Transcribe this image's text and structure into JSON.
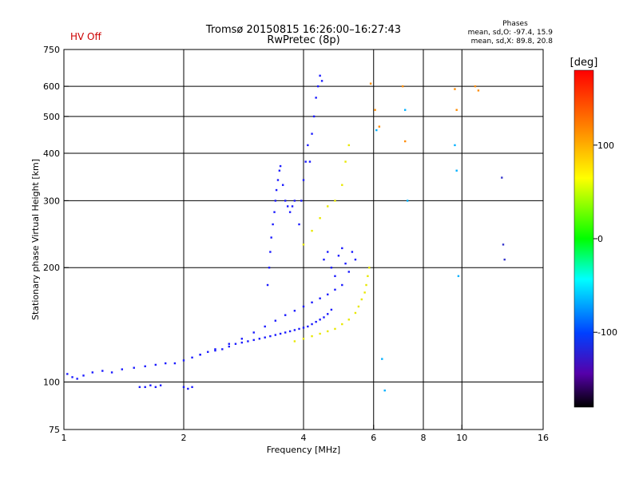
{
  "header": {
    "hv_status": "HV Off",
    "title_line1": "Tromsø 20150815 16:26:00–16:27:43",
    "title_line2": "RwPretec (8p)",
    "stats_title": "Phases",
    "stats_o": "mean, sd,O: -97.4, 15.9",
    "stats_x": "mean, sd,X:  89.8, 20.8"
  },
  "chart_data": {
    "type": "scatter",
    "xlabel": "Frequency [MHz]",
    "ylabel": "Stationary phase Virtual Height [km]",
    "x_scale": "log2",
    "y_scale": "log",
    "xlim": [
      1,
      16
    ],
    "ylim": [
      75,
      750
    ],
    "x_ticks": [
      1,
      2,
      4,
      6,
      8,
      10,
      16
    ],
    "y_ticks": [
      75,
      100,
      200,
      300,
      400,
      500,
      600,
      750
    ],
    "grid_x": [
      2,
      4,
      6,
      8,
      10
    ],
    "grid_y": [
      100,
      200,
      300,
      400,
      500,
      600
    ],
    "colorbar": {
      "label": "[deg]",
      "range": [
        -180,
        180
      ],
      "ticks": [
        100,
        0,
        -100
      ],
      "colors": [
        "#ff0000",
        "#ff8c00",
        "#ffff00",
        "#00ff00",
        "#00ffff",
        "#0040ff",
        "#5500aa",
        "#000000"
      ]
    },
    "series": [
      {
        "color": "#1a1aff",
        "x": [
          1.02,
          1.05,
          1.08,
          1.12,
          1.18,
          1.25,
          1.32,
          1.4,
          1.5,
          1.6,
          1.7,
          1.8,
          1.9,
          2.0,
          2.1,
          2.2,
          2.3,
          2.4,
          2.5,
          2.6,
          2.7,
          2.8,
          2.9,
          3.0,
          3.1,
          3.2,
          3.3,
          3.4,
          3.5,
          3.6,
          3.7,
          3.8,
          3.9,
          4.0,
          4.1,
          4.2,
          4.3,
          4.4,
          4.5,
          4.6,
          4.7
        ],
        "y": [
          105,
          103,
          102,
          104,
          106,
          107,
          106,
          108,
          109,
          110,
          111,
          112,
          112,
          114,
          116,
          118,
          120,
          121,
          122,
          124,
          126,
          127,
          128,
          129,
          130,
          131,
          132,
          133,
          134,
          135,
          136,
          137,
          138,
          139,
          140,
          142,
          144,
          146,
          148,
          151,
          155
        ]
      },
      {
        "color": "#1a1aff",
        "x": [
          2.2,
          2.4,
          2.6,
          2.8,
          3.0,
          3.2,
          3.4,
          3.6,
          3.8,
          4.0,
          4.2,
          4.4,
          4.6,
          4.8,
          5.0
        ],
        "y": [
          118,
          122,
          126,
          130,
          135,
          140,
          145,
          150,
          154,
          158,
          162,
          166,
          170,
          175,
          180
        ]
      },
      {
        "color": "#1a1aff",
        "x": [
          3.25,
          3.28,
          3.3,
          3.32,
          3.35,
          3.38,
          3.4,
          3.42,
          3.45,
          3.48,
          3.5,
          3.55,
          3.6,
          3.65,
          3.7,
          3.75,
          3.8
        ],
        "y": [
          180,
          200,
          220,
          240,
          260,
          280,
          300,
          320,
          340,
          360,
          370,
          330,
          300,
          290,
          280,
          290,
          300
        ]
      },
      {
        "color": "#1a1aff",
        "x": [
          3.9,
          3.95,
          4.0,
          4.05,
          4.1,
          4.15,
          4.2,
          4.25,
          4.3,
          4.35,
          4.4,
          4.45
        ],
        "y": [
          260,
          300,
          340,
          380,
          420,
          380,
          450,
          500,
          560,
          600,
          640,
          620
        ]
      },
      {
        "color": "#1a1aff",
        "x": [
          1.55,
          1.6,
          1.65,
          1.7,
          1.75,
          2.0,
          2.05,
          2.1
        ],
        "y": [
          97,
          97,
          98,
          97,
          98,
          97,
          96,
          97
        ]
      },
      {
        "color": "#1a1aff",
        "x": [
          4.5,
          4.6,
          4.7,
          4.8,
          4.9,
          5.0,
          5.1,
          5.2,
          5.3,
          5.4
        ],
        "y": [
          210,
          220,
          200,
          190,
          215,
          225,
          205,
          195,
          220,
          210
        ]
      },
      {
        "color": "#e8e800",
        "x": [
          3.8,
          4.0,
          4.2,
          4.4,
          4.6,
          4.8,
          5.0,
          5.2,
          5.4,
          5.5,
          5.6,
          5.7,
          5.75,
          5.8,
          5.85
        ],
        "y": [
          128,
          130,
          132,
          134,
          136,
          138,
          142,
          146,
          152,
          158,
          165,
          172,
          180,
          190,
          200
        ]
      },
      {
        "color": "#e8e800",
        "x": [
          4.0,
          4.2,
          4.4,
          4.6,
          4.8,
          5.0,
          5.1,
          5.2
        ],
        "y": [
          230,
          250,
          270,
          290,
          300,
          330,
          380,
          420
        ]
      },
      {
        "color": "#ff8c00",
        "x": [
          5.9,
          6.05,
          6.2,
          7.1,
          7.2,
          9.6,
          9.7,
          10.8,
          11.0
        ],
        "y": [
          610,
          520,
          470,
          600,
          430,
          590,
          520,
          600,
          585
        ]
      },
      {
        "color": "#00b0ff",
        "x": [
          6.1,
          6.4,
          7.2,
          7.3,
          9.6,
          9.7,
          9.8,
          6.3
        ],
        "y": [
          460,
          95,
          520,
          300,
          420,
          360,
          190,
          115
        ]
      },
      {
        "color": "#3333cc",
        "x": [
          12.6,
          12.7,
          12.8
        ],
        "y": [
          345,
          230,
          210
        ]
      }
    ]
  }
}
